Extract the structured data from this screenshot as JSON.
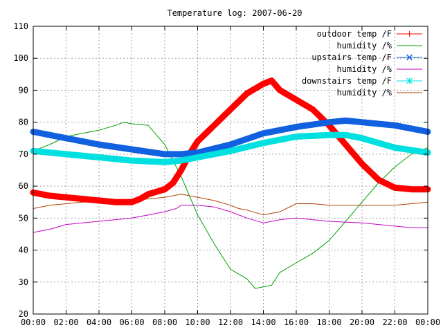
{
  "chart_data": {
    "type": "line",
    "title": "Temperature log: 2007-06-20",
    "xlabel": "",
    "ylabel": "",
    "x_ticks": [
      "00:00",
      "02:00",
      "04:00",
      "06:00",
      "08:00",
      "10:00",
      "12:00",
      "14:00",
      "16:00",
      "18:00",
      "20:00",
      "22:00",
      "00:00"
    ],
    "x_range_hours": [
      0,
      24
    ],
    "y_ticks": [
      20,
      30,
      40,
      50,
      60,
      70,
      80,
      90,
      100,
      110
    ],
    "ylim": [
      20,
      110
    ],
    "grid": true,
    "legend_position": "top-right",
    "series": [
      {
        "name": "outdoor temp /F",
        "color": "#ff0000",
        "marker": "plus",
        "style": "thick",
        "x": [
          0,
          1,
          2,
          3,
          4,
          5,
          6,
          6.5,
          7,
          8,
          8.5,
          9,
          9.5,
          10,
          11,
          12,
          13,
          14,
          14.5,
          15,
          16,
          17,
          18,
          19,
          20,
          21,
          22,
          23,
          24
        ],
        "y": [
          58,
          57,
          56.5,
          56,
          55.5,
          55,
          55,
          56,
          57.5,
          59,
          61,
          65,
          70,
          74,
          79,
          84,
          89,
          92,
          93,
          90,
          87,
          84,
          79,
          73,
          67,
          62,
          59.5,
          59,
          59
        ]
      },
      {
        "name": "humidity /%",
        "color": "#00a000",
        "marker": "",
        "style": "thin",
        "x": [
          0,
          1,
          2,
          3,
          4,
          5,
          5.5,
          6,
          7,
          7.5,
          8,
          8.5,
          9,
          9.5,
          10,
          11,
          12,
          13,
          13.5,
          14,
          14.5,
          15,
          16,
          17,
          18,
          19,
          20,
          21,
          22,
          23,
          24
        ],
        "y": [
          71,
          73,
          75.5,
          76.5,
          77.5,
          79,
          80,
          79.5,
          79,
          76,
          73,
          68,
          63,
          57,
          51,
          42,
          34,
          31,
          28,
          28.5,
          29,
          33,
          36,
          39,
          43,
          49,
          55,
          61,
          66,
          70,
          72
        ]
      },
      {
        "name": "upstairs temp /F",
        "color": "#1060e0",
        "marker": "cross",
        "style": "thick",
        "x": [
          0,
          2,
          4,
          6,
          8,
          9,
          10,
          12,
          14,
          16,
          18,
          19,
          20,
          22,
          24
        ],
        "y": [
          77,
          75,
          73,
          71.5,
          70,
          70,
          70.5,
          73,
          76.5,
          78.5,
          80,
          80.5,
          80,
          79,
          77
        ]
      },
      {
        "name": "humidity /%",
        "color": "#c000c0",
        "marker": "",
        "style": "thin",
        "x": [
          0,
          1,
          2,
          3,
          4,
          5,
          6,
          7,
          8,
          8.7,
          9,
          10,
          11,
          12,
          13,
          14,
          15,
          16,
          18,
          20,
          22,
          23,
          24
        ],
        "y": [
          45.5,
          46.5,
          48,
          48.5,
          49,
          49.5,
          50,
          51,
          52,
          53,
          54,
          54,
          53.5,
          52,
          50,
          48.5,
          49.5,
          50,
          49,
          48.5,
          47.5,
          47,
          47
        ]
      },
      {
        "name": "downstairs temp /F",
        "color": "#00e0e0",
        "marker": "star",
        "style": "thick",
        "x": [
          0,
          2,
          4,
          6,
          8,
          9,
          10,
          12,
          14,
          16,
          18,
          19,
          20,
          22,
          24
        ],
        "y": [
          71,
          70,
          69,
          68,
          67.5,
          68,
          69,
          71,
          73.5,
          75.5,
          76,
          76,
          75,
          72,
          70.5
        ]
      },
      {
        "name": "humidity /%",
        "color": "#b04000",
        "marker": "",
        "style": "thin",
        "x": [
          0,
          1,
          2,
          3,
          4,
          5,
          6,
          7,
          8,
          9,
          10,
          11,
          12,
          12.5,
          13,
          14,
          15,
          16,
          17,
          18,
          20,
          22,
          23,
          24
        ],
        "y": [
          53,
          54,
          54.5,
          55,
          55,
          55,
          55.5,
          56,
          56.5,
          57.5,
          56.5,
          55.5,
          54,
          53,
          52.5,
          51,
          52,
          54.5,
          54.5,
          54,
          54,
          54,
          54.5,
          55
        ]
      }
    ]
  }
}
